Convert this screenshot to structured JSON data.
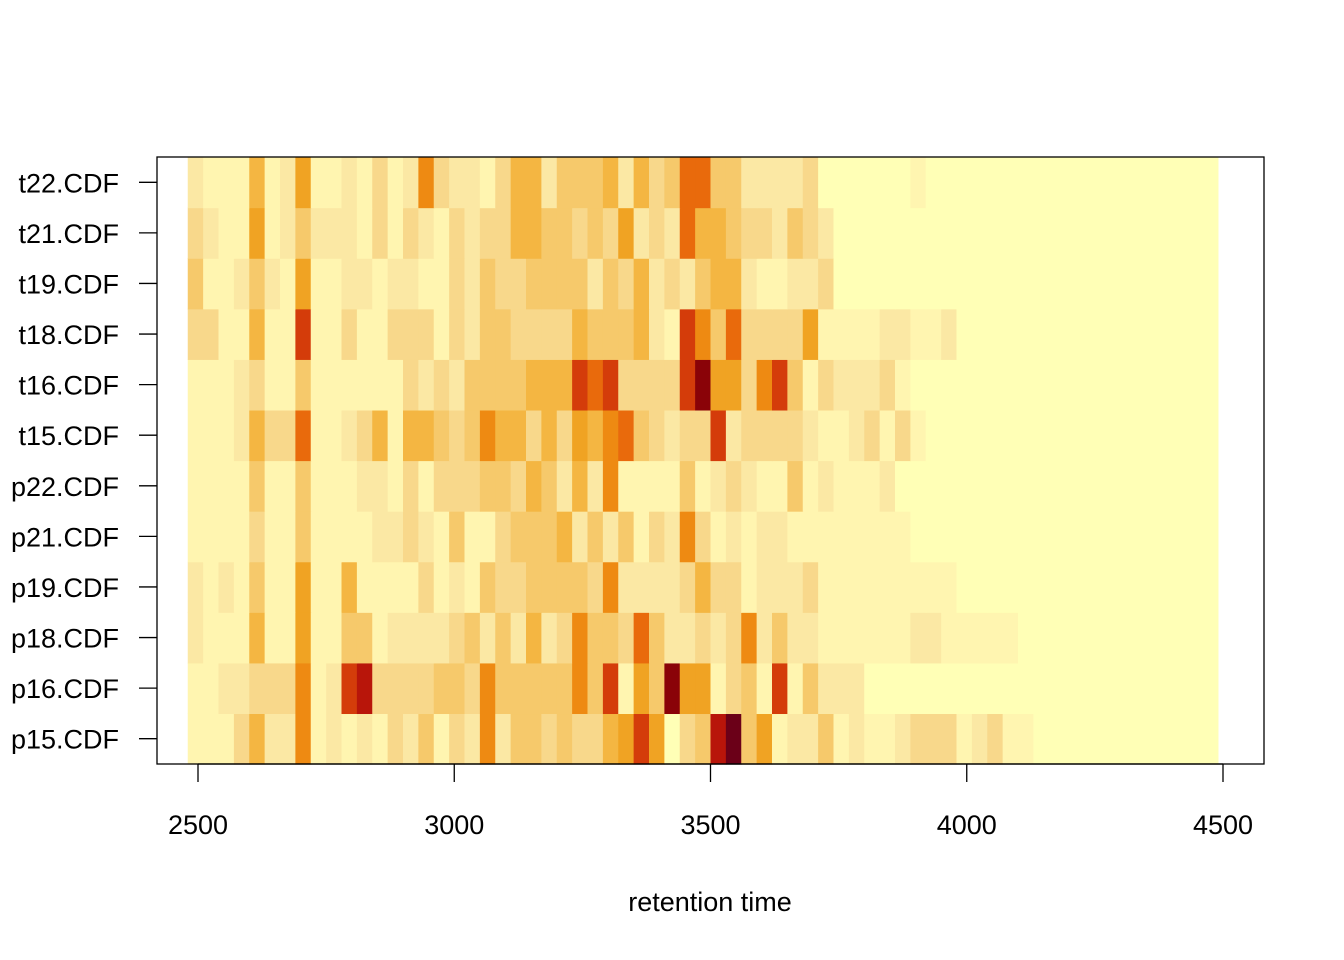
{
  "chart_data": {
    "type": "heatmap",
    "title": "",
    "xlabel": "retention time",
    "ylabel": "",
    "xlim": [
      2420,
      4580
    ],
    "x_ticks": [
      2500,
      3000,
      3500,
      4000,
      4500
    ],
    "x_range": [
      2480,
      4500
    ],
    "x_band_width": 30,
    "rows": [
      "p15.CDF",
      "p16.CDF",
      "p18.CDF",
      "p19.CDF",
      "p21.CDF",
      "p22.CDF",
      "t15.CDF",
      "t16.CDF",
      "t18.CDF",
      "t19.CDF",
      "t21.CDF",
      "t22.CDF"
    ],
    "row_labels_visible": [
      "p15.CDF",
      "p16.CDF",
      "p18.CDF",
      "p19.CDF",
      "p21.CDF",
      "p22.CDF",
      "t15.CDF",
      "t16.CDF",
      "t18.CDF",
      "t19.CDF",
      "t21.CDF",
      "t22.CDF"
    ],
    "color_scale": [
      "#FFFFB6",
      "#FFF5B0",
      "#FBE8A4",
      "#F8D88B",
      "#F6C96B",
      "#F4B642",
      "#F0A323",
      "#EE8A12",
      "#E96A0C",
      "#D43C0A",
      "#B8150A",
      "#8A0308",
      "#6B0018"
    ],
    "intensity_rows": [
      [
        1,
        1,
        1,
        3,
        5,
        2,
        2,
        7,
        1,
        2,
        1,
        2,
        1,
        3,
        2,
        4,
        1,
        3,
        2,
        7,
        2,
        4,
        4,
        3,
        4,
        3,
        3,
        5,
        6,
        9,
        6,
        0,
        3,
        4,
        10,
        12,
        4,
        6,
        1,
        2,
        2,
        4,
        1,
        2,
        1,
        1,
        2,
        3,
        3,
        3,
        1,
        2,
        3,
        1,
        1,
        0,
        0,
        0,
        0,
        0,
        0,
        0,
        0,
        0,
        0,
        0,
        0,
        0
      ],
      [
        1,
        1,
        2,
        2,
        3,
        3,
        3,
        7,
        1,
        2,
        9,
        10,
        3,
        3,
        3,
        3,
        4,
        4,
        3,
        7,
        4,
        4,
        4,
        4,
        4,
        7,
        4,
        9,
        1,
        6,
        4,
        11,
        6,
        6,
        1,
        3,
        4,
        1,
        9,
        1,
        4,
        2,
        2,
        2,
        0,
        0,
        0,
        0,
        0,
        0,
        0,
        0,
        0,
        0,
        0,
        0,
        0,
        0,
        0,
        0,
        0,
        0,
        0,
        0,
        0,
        0,
        0,
        0
      ],
      [
        2,
        1,
        1,
        1,
        5,
        1,
        1,
        6,
        1,
        1,
        4,
        4,
        1,
        2,
        2,
        2,
        2,
        3,
        4,
        2,
        4,
        2,
        5,
        2,
        3,
        7,
        4,
        4,
        3,
        8,
        4,
        2,
        2,
        3,
        2,
        3,
        7,
        2,
        4,
        2,
        2,
        1,
        1,
        1,
        1,
        1,
        1,
        2,
        2,
        1,
        1,
        1,
        1,
        1,
        0,
        0,
        0,
        0,
        0,
        0,
        0,
        0,
        0,
        0,
        0,
        0,
        0,
        0
      ],
      [
        2,
        1,
        2,
        1,
        4,
        1,
        1,
        6,
        1,
        1,
        5,
        1,
        1,
        1,
        1,
        3,
        1,
        2,
        1,
        4,
        3,
        3,
        4,
        4,
        4,
        4,
        3,
        7,
        2,
        2,
        2,
        2,
        3,
        5,
        3,
        3,
        1,
        2,
        2,
        2,
        3,
        1,
        1,
        1,
        1,
        1,
        1,
        1,
        1,
        1,
        0,
        0,
        0,
        0,
        0,
        0,
        0,
        0,
        0,
        0,
        0,
        0,
        0,
        0,
        0,
        0,
        0,
        0,
        0,
        0,
        0,
        0
      ],
      [
        1,
        1,
        1,
        1,
        3,
        1,
        1,
        4,
        1,
        1,
        1,
        1,
        2,
        2,
        3,
        2,
        1,
        4,
        1,
        1,
        3,
        4,
        4,
        4,
        5,
        2,
        4,
        2,
        4,
        1,
        3,
        2,
        7,
        3,
        1,
        2,
        1,
        2,
        2,
        1,
        1,
        1,
        1,
        1,
        1,
        1,
        1,
        0,
        0,
        0,
        0,
        0,
        0,
        0,
        0,
        0,
        0,
        0,
        0,
        0,
        0,
        0,
        0,
        0,
        0,
        0,
        0,
        0
      ],
      [
        1,
        1,
        1,
        1,
        4,
        1,
        1,
        4,
        1,
        1,
        1,
        2,
        2,
        1,
        3,
        1,
        3,
        3,
        3,
        4,
        4,
        3,
        5,
        4,
        2,
        5,
        2,
        7,
        1,
        1,
        1,
        1,
        4,
        1,
        2,
        3,
        2,
        1,
        1,
        4,
        1,
        2,
        1,
        1,
        1,
        2,
        0,
        0,
        0,
        0,
        0,
        0,
        0,
        0,
        0,
        0,
        0,
        0,
        0,
        0,
        0,
        0,
        0,
        0,
        0,
        0,
        0,
        0
      ],
      [
        1,
        1,
        1,
        2,
        5,
        3,
        3,
        8,
        1,
        1,
        2,
        3,
        5,
        1,
        5,
        5,
        4,
        3,
        4,
        7,
        5,
        5,
        3,
        5,
        3,
        6,
        5,
        7,
        8,
        4,
        3,
        2,
        3,
        3,
        9,
        2,
        3,
        3,
        3,
        3,
        2,
        1,
        1,
        2,
        3,
        1,
        3,
        1,
        0,
        0,
        0,
        0,
        0,
        0,
        0,
        0,
        0,
        0,
        0,
        0,
        0,
        0,
        0,
        0,
        0,
        0,
        0,
        0,
        0
      ],
      [
        1,
        1,
        1,
        2,
        3,
        1,
        1,
        4,
        1,
        1,
        1,
        1,
        1,
        1,
        3,
        2,
        3,
        2,
        4,
        4,
        4,
        4,
        5,
        5,
        5,
        9,
        8,
        9,
        3,
        3,
        3,
        3,
        9,
        11,
        6,
        6,
        3,
        7,
        9,
        4,
        1,
        3,
        2,
        2,
        2,
        3,
        1,
        0,
        0,
        0,
        0,
        0,
        0,
        0,
        0,
        0,
        0,
        0,
        0,
        0,
        0,
        0,
        0,
        0,
        0,
        0,
        0,
        0
      ],
      [
        3,
        3,
        1,
        1,
        5,
        1,
        1,
        9,
        1,
        1,
        3,
        1,
        1,
        3,
        3,
        3,
        1,
        3,
        2,
        4,
        4,
        3,
        3,
        3,
        3,
        5,
        4,
        4,
        4,
        5,
        2,
        1,
        9,
        7,
        4,
        8,
        3,
        3,
        3,
        3,
        6,
        1,
        1,
        1,
        1,
        2,
        2,
        1,
        1,
        2,
        0,
        0,
        0,
        0,
        0,
        0,
        0,
        0,
        0,
        0,
        0,
        0,
        0,
        0,
        0,
        0,
        0,
        0,
        0,
        0,
        0,
        0
      ],
      [
        4,
        1,
        1,
        2,
        4,
        2,
        1,
        6,
        1,
        1,
        2,
        2,
        1,
        2,
        2,
        1,
        1,
        3,
        2,
        4,
        3,
        3,
        4,
        4,
        4,
        4,
        2,
        4,
        3,
        5,
        2,
        3,
        2,
        4,
        5,
        5,
        2,
        1,
        1,
        2,
        2,
        3,
        0,
        0,
        0,
        0,
        0,
        0,
        0,
        0,
        0,
        0,
        0,
        0,
        0,
        0,
        0,
        0,
        0,
        0,
        0,
        0,
        0,
        0,
        0,
        0,
        0,
        0,
        0
      ],
      [
        3,
        2,
        1,
        1,
        6,
        1,
        2,
        4,
        2,
        2,
        2,
        1,
        3,
        1,
        3,
        2,
        1,
        3,
        2,
        3,
        3,
        5,
        5,
        4,
        4,
        3,
        4,
        3,
        6,
        2,
        3,
        2,
        8,
        5,
        5,
        4,
        3,
        3,
        2,
        4,
        3,
        2,
        0,
        0,
        0,
        0,
        0,
        0,
        0,
        0,
        0,
        0,
        0,
        0,
        0,
        0,
        0,
        0,
        0,
        0,
        0,
        0,
        0,
        0,
        0,
        0,
        0,
        0,
        0
      ],
      [
        2,
        1,
        1,
        1,
        5,
        1,
        2,
        6,
        1,
        1,
        2,
        1,
        3,
        1,
        2,
        7,
        3,
        2,
        2,
        1,
        3,
        5,
        5,
        2,
        4,
        4,
        4,
        5,
        2,
        5,
        3,
        4,
        8,
        8,
        4,
        4,
        2,
        2,
        2,
        2,
        3,
        0,
        0,
        0,
        0,
        0,
        0,
        1,
        0,
        0,
        0,
        0,
        0,
        0,
        0,
        0,
        0,
        0,
        0,
        0,
        0,
        0,
        0,
        0,
        0,
        0,
        0,
        0,
        0,
        0
      ]
    ]
  }
}
